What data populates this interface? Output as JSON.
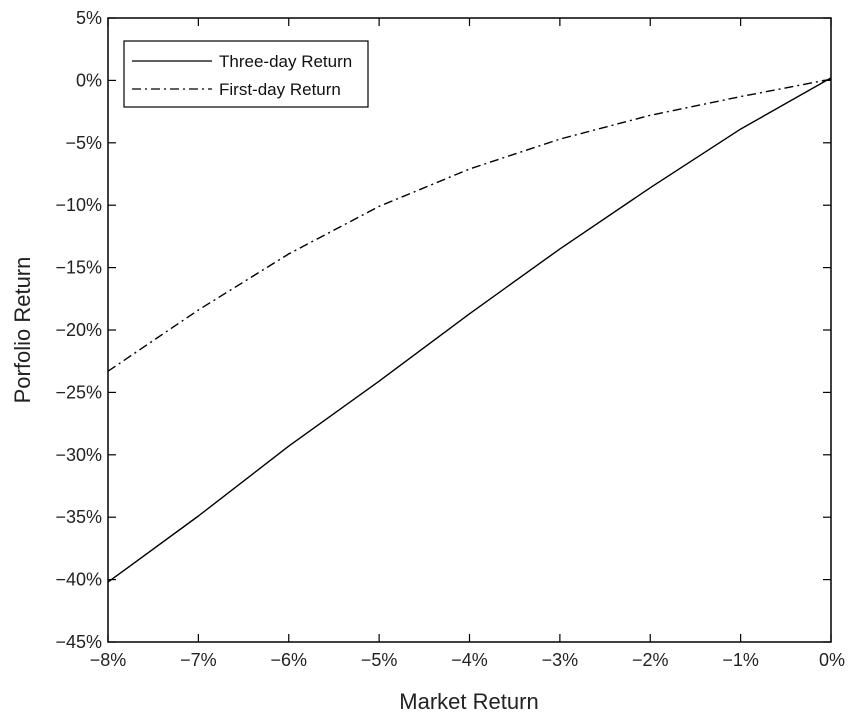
{
  "chart_data": {
    "type": "line",
    "title": "",
    "xlabel": "Market Return",
    "ylabel": "Porfolio Return",
    "xlim": [
      -8,
      0
    ],
    "ylim": [
      -45,
      5
    ],
    "x_ticks": [
      -8,
      -7,
      -6,
      -5,
      -4,
      -3,
      -2,
      -1,
      0
    ],
    "x_tick_labels": [
      "−8%",
      "−7%",
      "−6%",
      "−5%",
      "−4%",
      "−3%",
      "−2%",
      "−1%",
      "0%"
    ],
    "y_ticks": [
      5,
      0,
      -5,
      -10,
      -15,
      -20,
      -25,
      -30,
      -35,
      -40,
      -45
    ],
    "y_tick_labels": [
      "5%",
      "0%",
      "−5%",
      "−10%",
      "−15%",
      "−20%",
      "−25%",
      "−30%",
      "−35%",
      "−40%",
      "−45%"
    ],
    "grid": false,
    "legend_position": "top-left",
    "x": [
      -8,
      -7,
      -6,
      -5,
      -4,
      -3,
      -2,
      -1,
      0
    ],
    "series": [
      {
        "name": "Three-day Return",
        "style": "solid",
        "color": "#000000",
        "values": [
          -40.2,
          -34.9,
          -29.3,
          -24.1,
          -18.7,
          -13.5,
          -8.6,
          -3.9,
          0.2
        ]
      },
      {
        "name": "First-day Return",
        "style": "dashdot",
        "color": "#000000",
        "values": [
          -23.3,
          -18.4,
          -13.9,
          -10.1,
          -7.1,
          -4.7,
          -2.8,
          -1.3,
          0.1
        ]
      }
    ]
  }
}
